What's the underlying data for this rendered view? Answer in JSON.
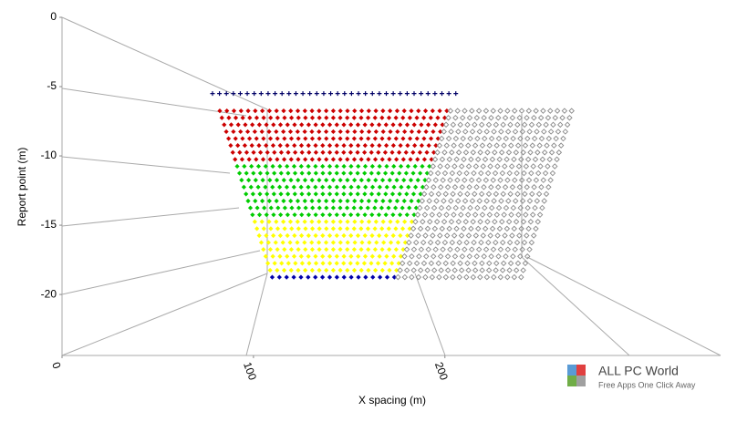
{
  "chart_data": {
    "type": "scatter",
    "ylabel": "Report point (m)",
    "xlabel": "X spacing (m)",
    "ylim": [
      -24.4,
      0
    ],
    "yticks": [
      0,
      -5,
      -10,
      -15,
      -20
    ],
    "xlim": [
      0,
      344
    ],
    "xticks": [
      0,
      100,
      200
    ],
    "series": [
      {
        "color": "#000066",
        "marker": "plus",
        "rows": [
          {
            "y": -5.5,
            "x": [
              78.6,
              205.7
            ]
          }
        ]
      },
      {
        "color": "#cc0000",
        "marker": "diamond",
        "rows": [
          {
            "y": -6.75,
            "x": [
              82.4,
              201.0
            ]
          },
          {
            "y": -7.25,
            "x": [
              83.5,
              199.9
            ]
          },
          {
            "y": -7.75,
            "x": [
              84.7,
              198.7
            ]
          },
          {
            "y": -8.25,
            "x": [
              85.8,
              197.6
            ]
          },
          {
            "y": -8.75,
            "x": [
              87.0,
              196.4
            ]
          },
          {
            "y": -9.25,
            "x": [
              88.1,
              195.3
            ]
          },
          {
            "y": -9.75,
            "x": [
              89.2,
              194.2
            ]
          },
          {
            "y": -10.25,
            "x": [
              90.4,
              193.0
            ]
          }
        ]
      },
      {
        "color": "#00cc00",
        "marker": "diamond",
        "rows": [
          {
            "y": -10.75,
            "x": [
              91.5,
              191.9
            ]
          },
          {
            "y": -11.25,
            "x": [
              92.7,
              190.7
            ]
          },
          {
            "y": -11.75,
            "x": [
              93.8,
              189.6
            ]
          },
          {
            "y": -12.25,
            "x": [
              95.0,
              188.4
            ]
          },
          {
            "y": -12.75,
            "x": [
              96.1,
              187.3
            ]
          },
          {
            "y": -13.25,
            "x": [
              97.2,
              186.2
            ]
          },
          {
            "y": -13.75,
            "x": [
              98.4,
              185.0
            ]
          },
          {
            "y": -14.25,
            "x": [
              99.5,
              183.9
            ]
          }
        ]
      },
      {
        "color": "#ffff00",
        "marker": "diamond",
        "rows": [
          {
            "y": -14.75,
            "x": [
              100.7,
              182.7
            ]
          },
          {
            "y": -15.25,
            "x": [
              101.8,
              181.6
            ]
          },
          {
            "y": -15.75,
            "x": [
              103.0,
              180.4
            ]
          },
          {
            "y": -16.25,
            "x": [
              104.1,
              179.3
            ]
          },
          {
            "y": -16.75,
            "x": [
              105.2,
              178.2
            ]
          },
          {
            "y": -17.25,
            "x": [
              106.4,
              177.0
            ]
          },
          {
            "y": -17.75,
            "x": [
              107.5,
              175.9
            ]
          },
          {
            "y": -18.25,
            "x": [
              108.7,
              174.7
            ]
          }
        ]
      },
      {
        "color": "#0000aa",
        "marker": "diamond",
        "rows": [
          {
            "y": -18.75,
            "x": [
              109.8,
              173.6
            ]
          }
        ]
      },
      {
        "color": "#888888",
        "marker": "open-diamond",
        "rows": [
          {
            "y": -6.75,
            "x": [
              202.9,
              266.2
            ]
          },
          {
            "y": -7.25,
            "x": [
              201.8,
              265.1
            ]
          },
          {
            "y": -7.75,
            "x": [
              200.6,
              264.0
            ]
          },
          {
            "y": -8.25,
            "x": [
              199.5,
              262.9
            ]
          },
          {
            "y": -8.75,
            "x": [
              198.3,
              261.8
            ]
          },
          {
            "y": -9.25,
            "x": [
              197.2,
              260.7
            ]
          },
          {
            "y": -9.75,
            "x": [
              196.1,
              259.6
            ]
          },
          {
            "y": -10.25,
            "x": [
              194.9,
              258.5
            ]
          },
          {
            "y": -10.75,
            "x": [
              193.8,
              257.4
            ]
          },
          {
            "y": -11.25,
            "x": [
              192.6,
              256.3
            ]
          },
          {
            "y": -11.75,
            "x": [
              191.5,
              255.2
            ]
          },
          {
            "y": -12.25,
            "x": [
              190.3,
              254.1
            ]
          },
          {
            "y": -12.75,
            "x": [
              189.2,
              253.0
            ]
          },
          {
            "y": -13.25,
            "x": [
              188.1,
              251.9
            ]
          },
          {
            "y": -13.75,
            "x": [
              186.9,
              250.8
            ]
          },
          {
            "y": -14.25,
            "x": [
              185.8,
              249.7
            ]
          },
          {
            "y": -14.75,
            "x": [
              184.6,
              248.6
            ]
          },
          {
            "y": -15.25,
            "x": [
              183.5,
              247.5
            ]
          },
          {
            "y": -15.75,
            "x": [
              182.3,
              246.4
            ]
          },
          {
            "y": -16.25,
            "x": [
              181.2,
              245.3
            ]
          },
          {
            "y": -16.75,
            "x": [
              180.1,
              244.2
            ]
          },
          {
            "y": -17.25,
            "x": [
              178.9,
              243.1
            ]
          },
          {
            "y": -17.75,
            "x": [
              177.8,
              242.0
            ]
          },
          {
            "y": -18.25,
            "x": [
              176.6,
              240.9
            ]
          },
          {
            "y": -18.75,
            "x": [
              175.5,
              239.8
            ]
          }
        ]
      }
    ]
  },
  "watermark": {
    "title": "ALL PC World",
    "subtitle": "Free Apps One Click Away"
  }
}
